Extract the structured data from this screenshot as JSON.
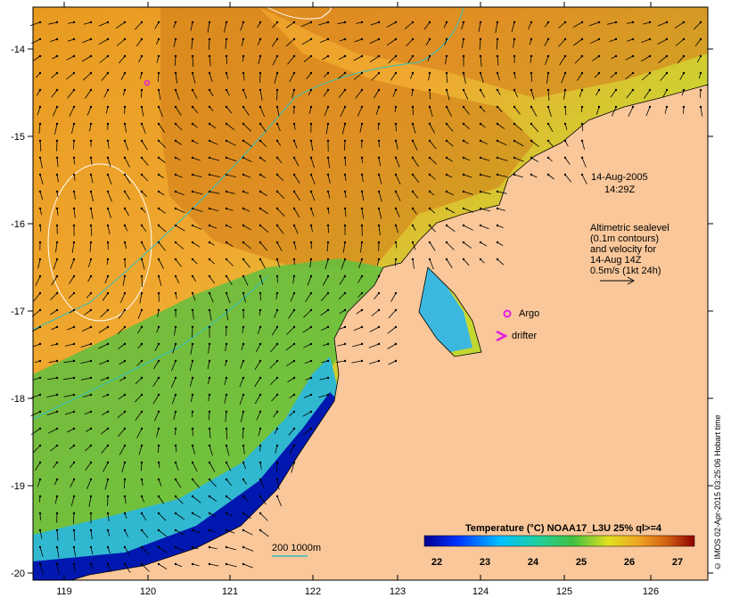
{
  "map": {
    "lon_ticks": [
      "119",
      "120",
      "121",
      "122",
      "123",
      "124",
      "125",
      "126"
    ],
    "lat_ticks": [
      "-14",
      "-15",
      "-16",
      "-17",
      "-18",
      "-19",
      "-20"
    ]
  },
  "annotations": {
    "date": "14-Aug-2005",
    "time": "14:29Z",
    "altimetry_lines": [
      "Altimetric sealevel",
      "(0.1m contours)",
      "and velocity for",
      "14-Aug 14Z",
      "0.5m/s (1kt 24h)"
    ],
    "argo_label": "Argo",
    "drifter_label": "drifter",
    "bathymetry_label": "200  1000m"
  },
  "colorbar": {
    "title": "Temperature (°C) NOAA17_L3U 25% ql>=4",
    "ticks": [
      "22",
      "23",
      "24",
      "25",
      "26",
      "27"
    ]
  },
  "credit": "© IMOS 02-Apr-2015 03:25:06 Hobart time",
  "colors": {
    "land": "#f9c79a",
    "argo": "#e020e0",
    "contour": "#ffffff",
    "isobath": "#30c0c0"
  }
}
